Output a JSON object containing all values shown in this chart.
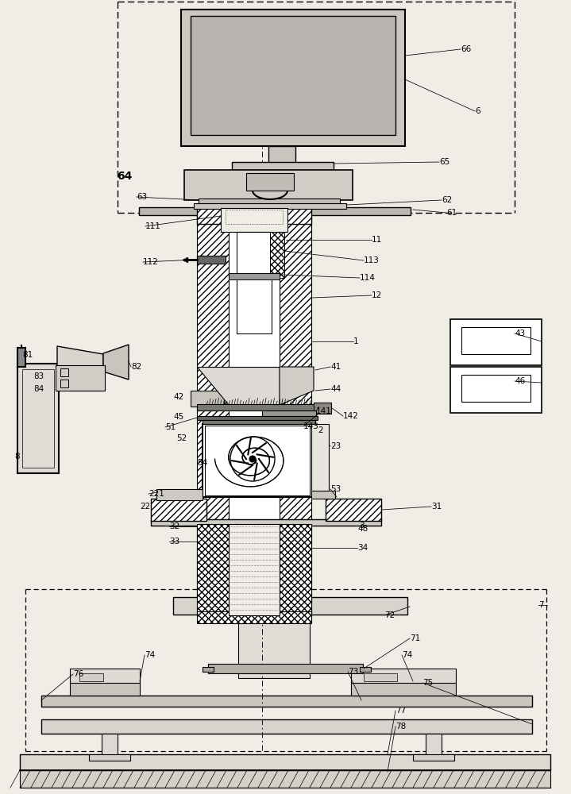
{
  "bg": "#f0ece6",
  "labels": [
    [
      "1",
      445,
      430
    ],
    [
      "2",
      400,
      542
    ],
    [
      "3",
      452,
      662
    ],
    [
      "6",
      598,
      140
    ],
    [
      "7",
      678,
      762
    ],
    [
      "8",
      18,
      575
    ],
    [
      "11",
      468,
      302
    ],
    [
      "12",
      468,
      372
    ],
    [
      "22",
      176,
      638
    ],
    [
      "23",
      416,
      562
    ],
    [
      "31",
      543,
      638
    ],
    [
      "32",
      213,
      663
    ],
    [
      "33",
      213,
      682
    ],
    [
      "34",
      450,
      690
    ],
    [
      "41",
      416,
      462
    ],
    [
      "42",
      218,
      500
    ],
    [
      "43",
      648,
      420
    ],
    [
      "44",
      416,
      490
    ],
    [
      "45",
      218,
      525
    ],
    [
      "46",
      648,
      480
    ],
    [
      "48",
      450,
      666
    ],
    [
      "51",
      208,
      538
    ],
    [
      "52",
      222,
      552
    ],
    [
      "53",
      416,
      616
    ],
    [
      "54",
      248,
      583
    ],
    [
      "61",
      562,
      268
    ],
    [
      "62",
      556,
      252
    ],
    [
      "63",
      172,
      248
    ],
    [
      "64",
      147,
      222
    ],
    [
      "65",
      553,
      204
    ],
    [
      "66",
      580,
      62
    ],
    [
      "71",
      516,
      804
    ],
    [
      "72",
      484,
      775
    ],
    [
      "73",
      438,
      846
    ],
    [
      "74",
      182,
      825
    ],
    [
      "74 ",
      506,
      825
    ],
    [
      "75",
      532,
      860
    ],
    [
      "76",
      92,
      849
    ],
    [
      "77",
      498,
      895
    ],
    [
      "78",
      498,
      915
    ],
    [
      "81",
      28,
      447
    ],
    [
      "82",
      165,
      462
    ],
    [
      "83",
      42,
      474
    ],
    [
      "84",
      42,
      490
    ],
    [
      "111",
      183,
      285
    ],
    [
      "112",
      180,
      330
    ],
    [
      "113",
      458,
      328
    ],
    [
      "114",
      453,
      350
    ],
    [
      "141",
      398,
      518
    ],
    [
      "142",
      432,
      524
    ],
    [
      "143",
      382,
      537
    ],
    [
      "221",
      187,
      622
    ]
  ]
}
